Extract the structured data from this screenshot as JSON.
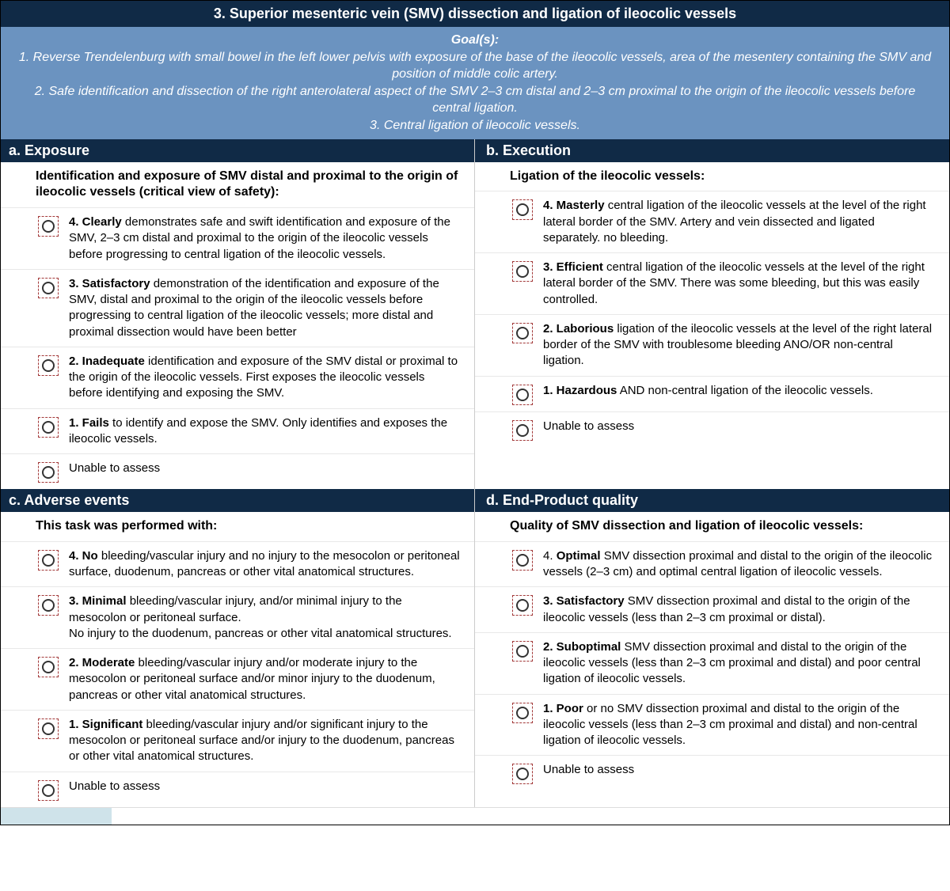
{
  "colors": {
    "header_bg": "#102a46",
    "header_text": "#ffffff",
    "goals_bg": "#6b93c0",
    "goals_text": "#ffffff",
    "radio_dash": "#a33a3a",
    "row_border": "#e8e8e8",
    "bottom_strip": "#cfe3ea"
  },
  "header": {
    "title": "3. Superior mesenteric vein (SMV) dissection and ligation of ileocolic vessels"
  },
  "goals": {
    "label": "Goal(s):",
    "items": [
      "1. Reverse Trendelenburg with small bowel in the left lower pelvis with exposure of the base of the ileocolic vessels, area of the mesentery containing the SMV and position of middle colic artery.",
      "2. Safe identification and dissection of the right anterolateral aspect of the SMV 2–3 cm distal and 2–3 cm proximal to the origin of the ileocolic vessels before central ligation.",
      "3. Central ligation of ileocolic vessels."
    ]
  },
  "sections": {
    "a": {
      "title": "a. Exposure",
      "sub": "Identification and exposure of SMV distal and proximal to the origin of ileocolic vessels (critical view of safety):",
      "rows": [
        {
          "bold": "4. Clearly",
          "text": " demonstrates safe and swift identification and exposure of the SMV, 2–3 cm distal and proximal to the origin of the ileocolic vessels before progressing to central ligation of the ileocolic vessels."
        },
        {
          "bold": "3. Satisfactory",
          "text": " demonstration of the identification and exposure of the SMV, distal and proximal to the origin of the ileocolic vessels before progressing to central ligation of the ileocolic vessels; more distal and proximal dissection would have been better"
        },
        {
          "bold": "2. Inadequate",
          "text": " identification and exposure of the SMV distal or proximal to the origin of the ileocolic vessels. First exposes the ileocolic vessels before identifying and exposing the SMV."
        },
        {
          "bold": "1. Fails",
          "text": " to identify and expose the SMV. Only identifies and exposes the ileocolic vessels."
        },
        {
          "bold": "",
          "text": "Unable to assess"
        }
      ]
    },
    "b": {
      "title": "b. Execution",
      "sub": "Ligation of the ileocolic vessels:",
      "rows": [
        {
          "bold": "4. Masterly",
          "text": " central ligation of the ileocolic vessels at the level of the right lateral border of the SMV. Artery and vein dissected and ligated separately. no bleeding."
        },
        {
          "bold": "3. Efficient",
          "text": " central ligation of the ileocolic vessels at the level of the right lateral border of the SMV. There was some bleeding, but this was easily controlled."
        },
        {
          "bold": "2. Laborious",
          "text": " ligation of the ileocolic vessels at the level of the right lateral border of the SMV with troublesome bleeding ANO/OR non-central ligation."
        },
        {
          "bold": "1. Hazardous",
          "text": " AND non-central ligation of the ileocolic vessels."
        },
        {
          "bold": "",
          "text": "Unable to assess"
        }
      ]
    },
    "c": {
      "title": "c. Adverse events",
      "sub": "This task was performed with:",
      "rows": [
        {
          "bold": "4. No",
          "text": " bleeding/vascular injury and no injury to the mesocolon or peritoneal surface, duodenum, pancreas or other vital anatomical structures."
        },
        {
          "bold": "3. Minimal",
          "text": " bleeding/vascular injury, and/or minimal injury to the mesocolon or peritoneal surface.\nNo injury to the duodenum, pancreas or other vital anatomical structures."
        },
        {
          "bold": "2. Moderate",
          "text": " bleeding/vascular injury and/or moderate injury to the mesocolon or peritoneal surface and/or minor injury to the duodenum, pancreas or other vital anatomical structures."
        },
        {
          "bold": "1. Significant",
          "text": " bleeding/vascular injury and/or significant injury to the mesocolon or peritoneal surface and/or injury to the duodenum, pancreas or other vital anatomical structures."
        },
        {
          "bold": "",
          "text": "Unable to assess"
        }
      ]
    },
    "d": {
      "title": "d. End-Product quality",
      "sub": "Quality of SMV dissection and ligation of ileocolic vessels:",
      "rows": [
        {
          "pre": "4. ",
          "bold": "Optimal",
          "text": " SMV dissection proximal and distal to the origin of the ileocolic vessels (2–3 cm) and optimal central ligation of ileocolic vessels."
        },
        {
          "pre": "",
          "bold": "3. Satisfactory",
          "text": " SMV dissection proximal and distal to the origin of the ileocolic vessels (less than 2–3 cm proximal or distal)."
        },
        {
          "pre": "",
          "bold": "2. Suboptimal",
          "text": " SMV dissection proximal and distal to the origin of the ileocolic vessels (less than 2–3 cm proximal and distal) and poor central ligation of ileocolic vessels."
        },
        {
          "pre": "",
          "bold": "1. Poor",
          "text": " or no SMV dissection proximal and distal to the origin of the ileocolic vessels (less than 2–3 cm proximal and distal) and non-central ligation of ileocolic vessels."
        },
        {
          "pre": "",
          "bold": "",
          "text": "Unable to assess"
        }
      ]
    }
  }
}
